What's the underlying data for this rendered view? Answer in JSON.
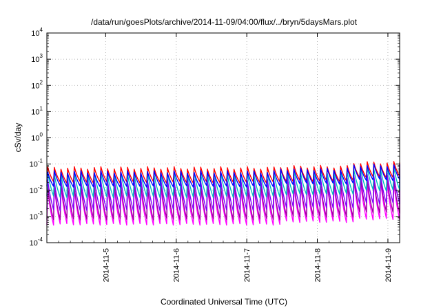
{
  "chart_data": {
    "type": "line",
    "title": "/data/run/goesPlots/archive/2014-11-09/04:00/flux/../bryn/5daysMars.plot",
    "xlabel": "Coordinated Universal Time (UTC)",
    "ylabel": "cSv/day",
    "yscale": "log",
    "ylim_exp": [
      -4,
      4
    ],
    "y_ticks": [
      {
        "base": "10",
        "exp": "-4",
        "value": 0.0001
      },
      {
        "base": "10",
        "exp": "-3",
        "value": 0.001
      },
      {
        "base": "10",
        "exp": "-2",
        "value": 0.01
      },
      {
        "base": "10",
        "exp": "-1",
        "value": 0.1
      },
      {
        "base": "10",
        "exp": "0",
        "value": 1
      },
      {
        "base": "10",
        "exp": "1",
        "value": 10
      },
      {
        "base": "10",
        "exp": "2",
        "value": 100
      },
      {
        "base": "10",
        "exp": "3",
        "value": 1000
      },
      {
        "base": "10",
        "exp": "4",
        "value": 10000
      }
    ],
    "x_range": [
      "2014-11-04 04:00",
      "2014-11-09 04:00"
    ],
    "x_ticks": [
      "2014-11-5",
      "2014-11-6",
      "2014-11-7",
      "2014-11-8",
      "2014-11-9"
    ],
    "grid": true,
    "cycles_per_day": 10.5,
    "series_colors": [
      "#0000ff",
      "#ff0000",
      "#00c0c0",
      "#8000ff",
      "#a000a0",
      "#ff00ff"
    ],
    "series": [
      {
        "peak_log": [
          -1.3,
          -1.2,
          -1.05
        ],
        "trough_log": [
          -1.85,
          -1.75,
          -1.6
        ]
      },
      {
        "peak_log": [
          -1.15,
          -1.1,
          -0.95
        ],
        "trough_log": [
          -1.7,
          -1.65,
          -1.5
        ]
      },
      {
        "peak_log": [
          -1.35,
          -1.3,
          -1.15
        ],
        "trough_log": [
          -2.25,
          -2.15,
          -2.0
        ]
      },
      {
        "peak_log": [
          -1.6,
          -1.5,
          -1.4
        ],
        "trough_log": [
          -2.75,
          -2.65,
          -2.5
        ]
      },
      {
        "peak_log": [
          -1.8,
          -1.7,
          -1.55
        ],
        "trough_log": [
          -3.1,
          -3.0,
          -2.85
        ]
      },
      {
        "peak_log": [
          -1.9,
          -1.8,
          -1.65
        ],
        "trough_log": [
          -3.3,
          -3.2,
          -3.1
        ]
      }
    ]
  }
}
